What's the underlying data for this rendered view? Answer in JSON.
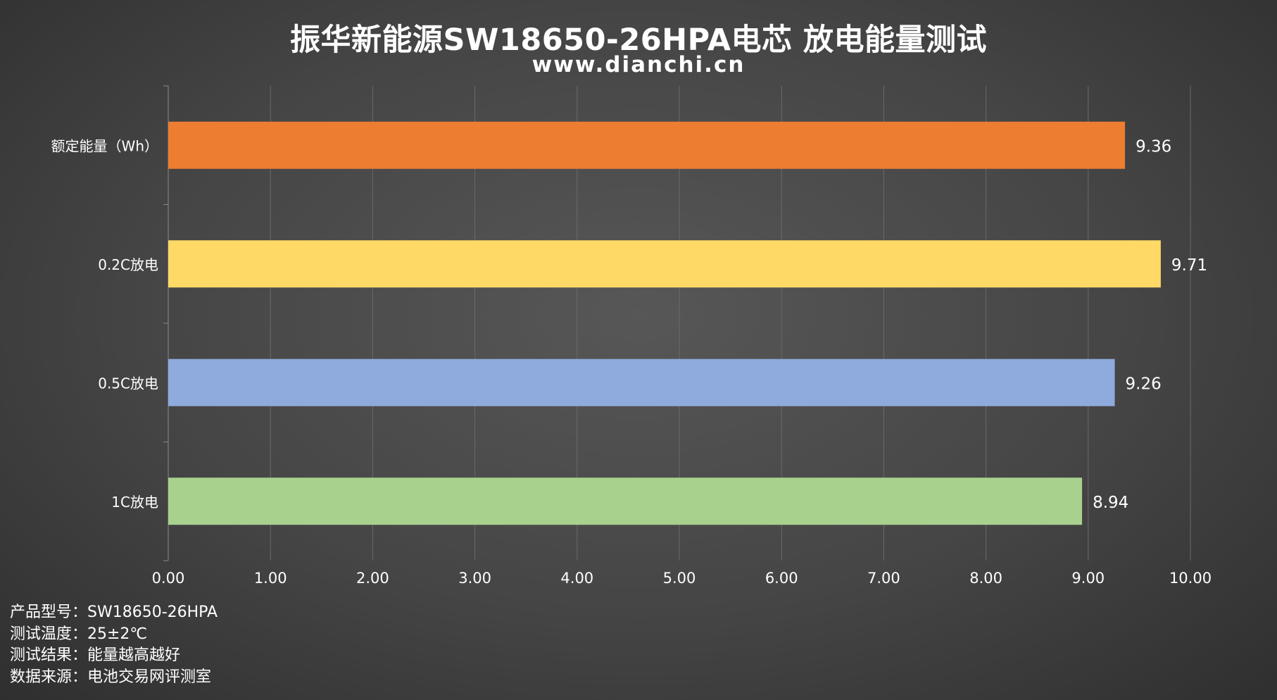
{
  "title": "振华新能源SW18650-26HPA电芯 放电能量测试",
  "subtitle": "www.dianchi.cn",
  "chart_data": {
    "type": "bar",
    "orientation": "horizontal",
    "categories": [
      "额定能量（Wh）",
      "0.2C放电",
      "0.5C放电",
      "1C放电"
    ],
    "values": [
      9.36,
      9.71,
      9.26,
      8.94
    ],
    "value_labels": [
      "9.36",
      "9.71",
      "9.26",
      "8.94"
    ],
    "colors": [
      "#ed7d31",
      "#ffd966",
      "#8faadc",
      "#a9d18e"
    ],
    "xlim": [
      0,
      10
    ],
    "xticks": [
      "0.00",
      "1.00",
      "2.00",
      "3.00",
      "4.00",
      "5.00",
      "6.00",
      "7.00",
      "8.00",
      "9.00",
      "10.00"
    ],
    "grid": true,
    "legend": "none"
  },
  "notes": [
    "产品型号：SW18650-26HPA",
    "测试温度：25±2℃",
    "测试结果：能量越高越好",
    "数据来源：电池交易网评测室"
  ]
}
